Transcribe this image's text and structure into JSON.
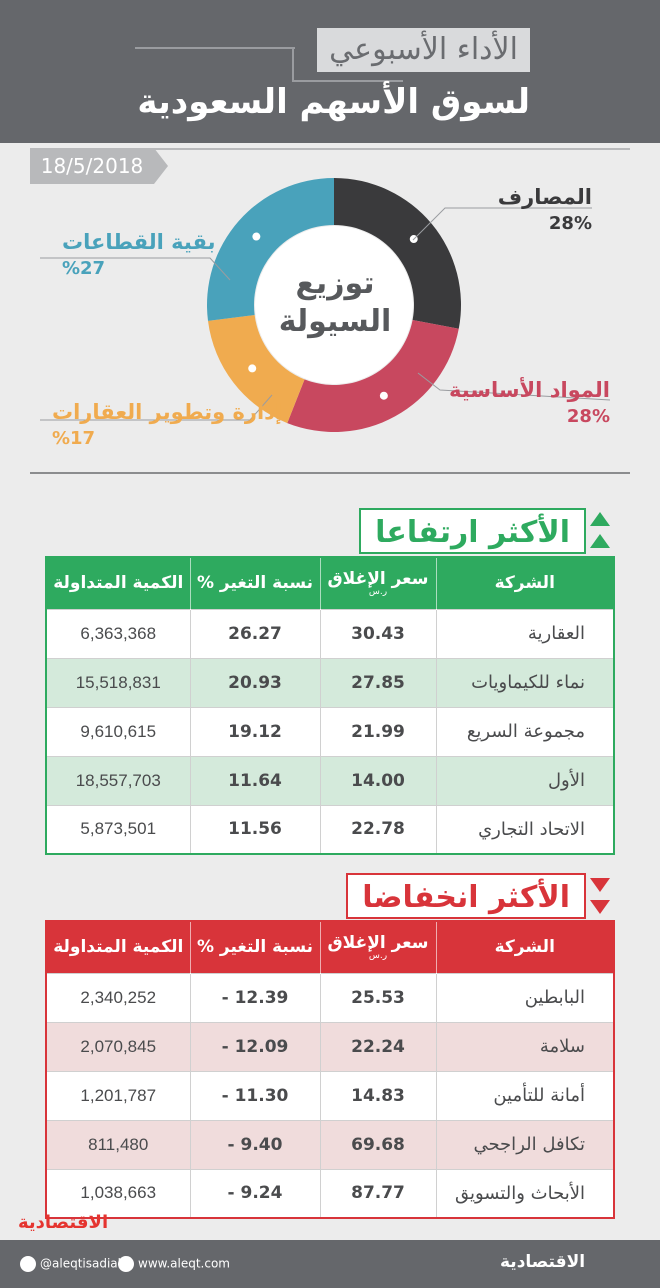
{
  "header": {
    "title_small": "الأداء الأسبوعي",
    "title_big": "لسوق الأسهم السعودية"
  },
  "date": "18/5/2018",
  "donut_center": "توزيع السيولة",
  "chart_data": {
    "type": "pie",
    "title": "توزيع السيولة",
    "categories": [
      "المصارف",
      "المواد الأساسية",
      "إدارة وتطوير العقارات",
      "بقية القطاعات"
    ],
    "values": [
      28,
      28,
      17,
      27
    ],
    "colors": [
      "#3a3a3c",
      "#c8485f",
      "#f0ab4f",
      "#49a2bb"
    ],
    "labels": [
      "28%",
      "28%",
      "%17",
      "%27"
    ]
  },
  "gainers": {
    "title": "الأكثر ارتفاعا",
    "color": "#2eaa5f",
    "headers": [
      "الشركة",
      "سعر الإغلاق",
      "نسبة التغير %",
      "الكمية المتداولة"
    ],
    "header_sub": "ر.س",
    "rows": [
      {
        "company": "العقارية",
        "close": "30.43",
        "change": "26.27",
        "volume": "6,363,368"
      },
      {
        "company": "نماء للكيماويات",
        "close": "27.85",
        "change": "20.93",
        "volume": "15,518,831"
      },
      {
        "company": "مجموعة السريع",
        "close": "21.99",
        "change": "19.12",
        "volume": "9,610,615"
      },
      {
        "company": "الأول",
        "close": "14.00",
        "change": "11.64",
        "volume": "18,557,703"
      },
      {
        "company": "الاتحاد التجاري",
        "close": "22.78",
        "change": "11.56",
        "volume": "5,873,501"
      }
    ]
  },
  "losers": {
    "title": "الأكثر انخفاضا",
    "color": "#d8343a",
    "headers": [
      "الشركة",
      "سعر الإغلاق",
      "نسبة التغير %",
      "الكمية المتداولة"
    ],
    "header_sub": "ر.س",
    "rows": [
      {
        "company": "البابطين",
        "close": "25.53",
        "change": "12.39 -",
        "volume": "2,340,252"
      },
      {
        "company": "سلامة",
        "close": "22.24",
        "change": "12.09 -",
        "volume": "2,070,845"
      },
      {
        "company": "أمانة للتأمين",
        "close": "14.83",
        "change": "11.30 -",
        "volume": "1,201,787"
      },
      {
        "company": "تكافل الراجحي",
        "close": "69.68",
        "change": "9.40 -",
        "volume": "811,480"
      },
      {
        "company": "الأبحاث والتسويق",
        "close": "87.77",
        "change": "9.24 -",
        "volume": "1,038,663"
      }
    ]
  },
  "footer": {
    "twitter": "@aleqtisadiah",
    "website": "www.aleqt.com",
    "logo": "الاقتصادية"
  }
}
